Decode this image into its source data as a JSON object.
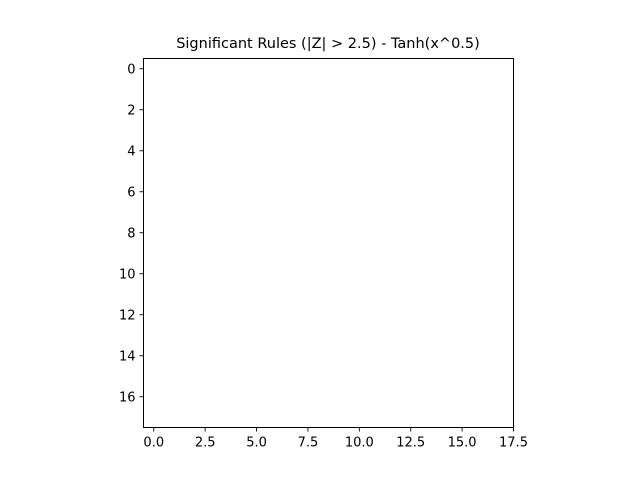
{
  "chart_data": {
    "type": "heatmap",
    "title": "Significant Rules (|Z| > 2.5) - Tanh(x^0.5)",
    "xlabel": "",
    "ylabel": "",
    "xlim": [
      -0.5,
      17.5
    ],
    "ylim": [
      17.5,
      -0.5
    ],
    "y_inverted": true,
    "x_ticks": [
      0.0,
      2.5,
      5.0,
      7.5,
      10.0,
      12.5,
      15.0,
      17.5
    ],
    "x_tick_labels": [
      "0.0",
      "2.5",
      "5.0",
      "7.5",
      "10.0",
      "12.5",
      "15.0",
      "17.5"
    ],
    "y_ticks": [
      0,
      2,
      4,
      6,
      8,
      10,
      12,
      14,
      16
    ],
    "y_tick_labels": [
      "0",
      "2",
      "4",
      "6",
      "8",
      "10",
      "12",
      "14",
      "16"
    ],
    "grid": false,
    "legend": "none",
    "cells": [],
    "colors": {
      "background": "#ffffff",
      "frame": "#000000",
      "text": "#000000"
    }
  }
}
